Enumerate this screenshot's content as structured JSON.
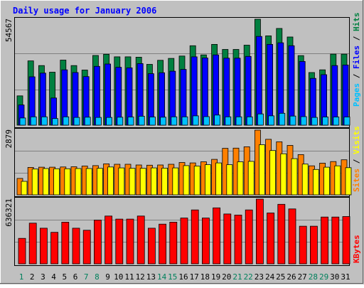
{
  "chart_data": [
    {
      "type": "bar",
      "title": "Daily usage for January 2006",
      "categories": [
        "1",
        "2",
        "3",
        "4",
        "5",
        "6",
        "7",
        "8",
        "9",
        "10",
        "11",
        "12",
        "13",
        "14",
        "15",
        "16",
        "17",
        "18",
        "19",
        "20",
        "21",
        "22",
        "23",
        "24",
        "25",
        "26",
        "27",
        "28",
        "29",
        "30",
        "31"
      ],
      "weekend_days": [
        1,
        7,
        8,
        14,
        15,
        21,
        22,
        28,
        29
      ],
      "ymax_label": "54567",
      "ylim": [
        0,
        54567
      ],
      "grid": true,
      "legend_position": "right",
      "series": [
        {
          "name": "Hits",
          "color": "#008040",
          "values": [
            15100,
            33100,
            30700,
            27300,
            33500,
            30700,
            28400,
            35900,
            36500,
            35200,
            35200,
            35000,
            31300,
            33400,
            34400,
            35600,
            40900,
            36200,
            41600,
            39000,
            39000,
            41200,
            54567,
            46000,
            49800,
            45400,
            35800,
            27100,
            28500,
            36600,
            36600
          ]
        },
        {
          "name": "Files",
          "color": "#0000ff",
          "values": [
            10400,
            24900,
            26800,
            14000,
            28500,
            27100,
            25000,
            30300,
            31500,
            29800,
            29500,
            31700,
            26500,
            27000,
            27800,
            28700,
            35200,
            34600,
            36200,
            34500,
            34500,
            35400,
            45700,
            41600,
            42400,
            40900,
            32800,
            24100,
            26000,
            30700,
            31000
          ]
        },
        {
          "name": "Pages",
          "color": "#00c0ff",
          "values": [
            3700,
            4300,
            4300,
            3400,
            4300,
            4000,
            4100,
            4000,
            4000,
            4100,
            4200,
            4600,
            4200,
            4100,
            4300,
            4300,
            4800,
            4400,
            5200,
            4300,
            4300,
            4300,
            5800,
            4800,
            6100,
            4700,
            4400,
            4000,
            4200,
            4200,
            4200
          ]
        }
      ]
    },
    {
      "type": "bar",
      "ymax_label": "2879",
      "ylim": [
        0,
        2879
      ],
      "grid": true,
      "legend_position": "right",
      "series": [
        {
          "name": "Visits",
          "color": "#ff8000",
          "values": [
            730,
            1220,
            1230,
            1230,
            1240,
            1250,
            1280,
            1300,
            1380,
            1360,
            1360,
            1330,
            1320,
            1330,
            1360,
            1440,
            1420,
            1470,
            1580,
            2070,
            2080,
            2140,
            2879,
            2470,
            2360,
            2200,
            1790,
            1290,
            1410,
            1480,
            1560
          ]
        },
        {
          "name": "Sites",
          "color": "#ffff00",
          "values": [
            600,
            1150,
            1170,
            1160,
            1160,
            1170,
            1170,
            1180,
            1240,
            1200,
            1180,
            1180,
            1200,
            1190,
            1200,
            1300,
            1280,
            1340,
            1420,
            1340,
            1470,
            1490,
            2230,
            1970,
            1830,
            1610,
            1370,
            1130,
            1230,
            1290,
            1210
          ]
        }
      ]
    },
    {
      "type": "bar",
      "ymax_label": "636321",
      "ylim": [
        0,
        636321
      ],
      "grid": true,
      "legend_position": "right",
      "series": [
        {
          "name": "KBytes",
          "color": "#ff0000",
          "values": [
            250000,
            400000,
            350000,
            310000,
            410000,
            350000,
            330000,
            430000,
            470000,
            440000,
            440000,
            470000,
            350000,
            390000,
            410000,
            450000,
            530000,
            450000,
            550000,
            490000,
            480000,
            530000,
            636321,
            500000,
            585000,
            540000,
            370000,
            370000,
            460000,
            460000,
            465000
          ]
        }
      ]
    }
  ]
}
